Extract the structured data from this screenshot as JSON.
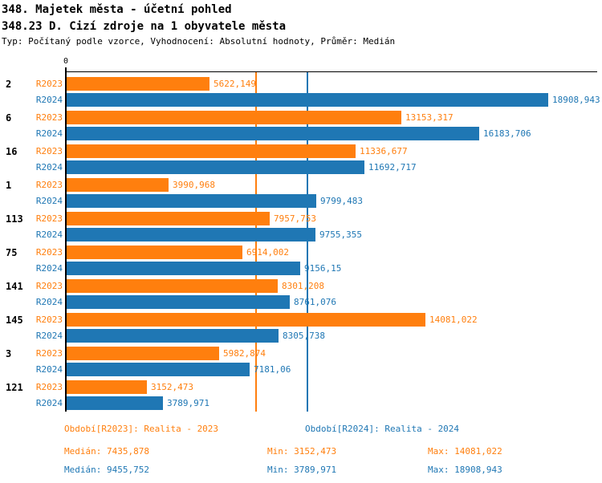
{
  "header": {
    "title_line1": "348. Majetek města - účetní pohled",
    "title_line2": "348.23 D. Cizí zdroje na 1 obyvatele města",
    "subtitle": "Typ: Počítaný podle vzorce, Vyhodnocení: Absolutní hodnoty, Průměr: Medián"
  },
  "chart_data": {
    "type": "bar",
    "orientation": "horizontal",
    "title": "348.23 D. Cizí zdroje na 1 obyvatele města",
    "zero_label": "0",
    "xlim": [
      0,
      20900
    ],
    "grid": false,
    "legend_position": "bottom",
    "categories": [
      "2",
      "6",
      "16",
      "1",
      "113",
      "75",
      "141",
      "145",
      "3",
      "121"
    ],
    "series": [
      {
        "name": "R2023",
        "color": "#ff7f0e",
        "values": [
          5622.149,
          13153.317,
          11336.677,
          3990.968,
          7957.753,
          6914.002,
          8301.208,
          14081.022,
          5982.874,
          3152.473
        ],
        "labels": [
          "5622,149",
          "13153,317",
          "11336,677",
          "3990,968",
          "7957,753",
          "6914,002",
          "8301,208",
          "14081,022",
          "5982,874",
          "3152,473"
        ]
      },
      {
        "name": "R2024",
        "color": "#1f77b4",
        "values": [
          18908.943,
          16183.706,
          11692.717,
          9799.483,
          9755.355,
          9156.15,
          8761.076,
          8305.738,
          7181.06,
          3789.971
        ],
        "labels": [
          "18908,943",
          "16183,706",
          "11692,717",
          "9799,483",
          "9755,355",
          "9156,15",
          "8761,076",
          "8305,738",
          "7181,06",
          "3789,971"
        ]
      }
    ],
    "median_lines": [
      {
        "series": "R2023",
        "value": 7435.878,
        "color": "#ff7f0e"
      },
      {
        "series": "R2024",
        "value": 9455.752,
        "color": "#1f77b4"
      }
    ]
  },
  "footer": {
    "legend": [
      {
        "label": "Období[R2023]: Realita - 2023"
      },
      {
        "label": "Období[R2024]: Realita - 2024"
      }
    ],
    "stats": [
      {
        "median": "Medián: 7435,878",
        "min": "Min: 3152,473",
        "max": "Max: 14081,022"
      },
      {
        "median": "Medián: 9455,752",
        "min": "Min: 3789,971",
        "max": "Max: 18908,943"
      }
    ]
  },
  "colors": {
    "r2023": "#ff7f0e",
    "r2024": "#1f77b4",
    "axis": "#000000",
    "background": "#ffffff"
  }
}
